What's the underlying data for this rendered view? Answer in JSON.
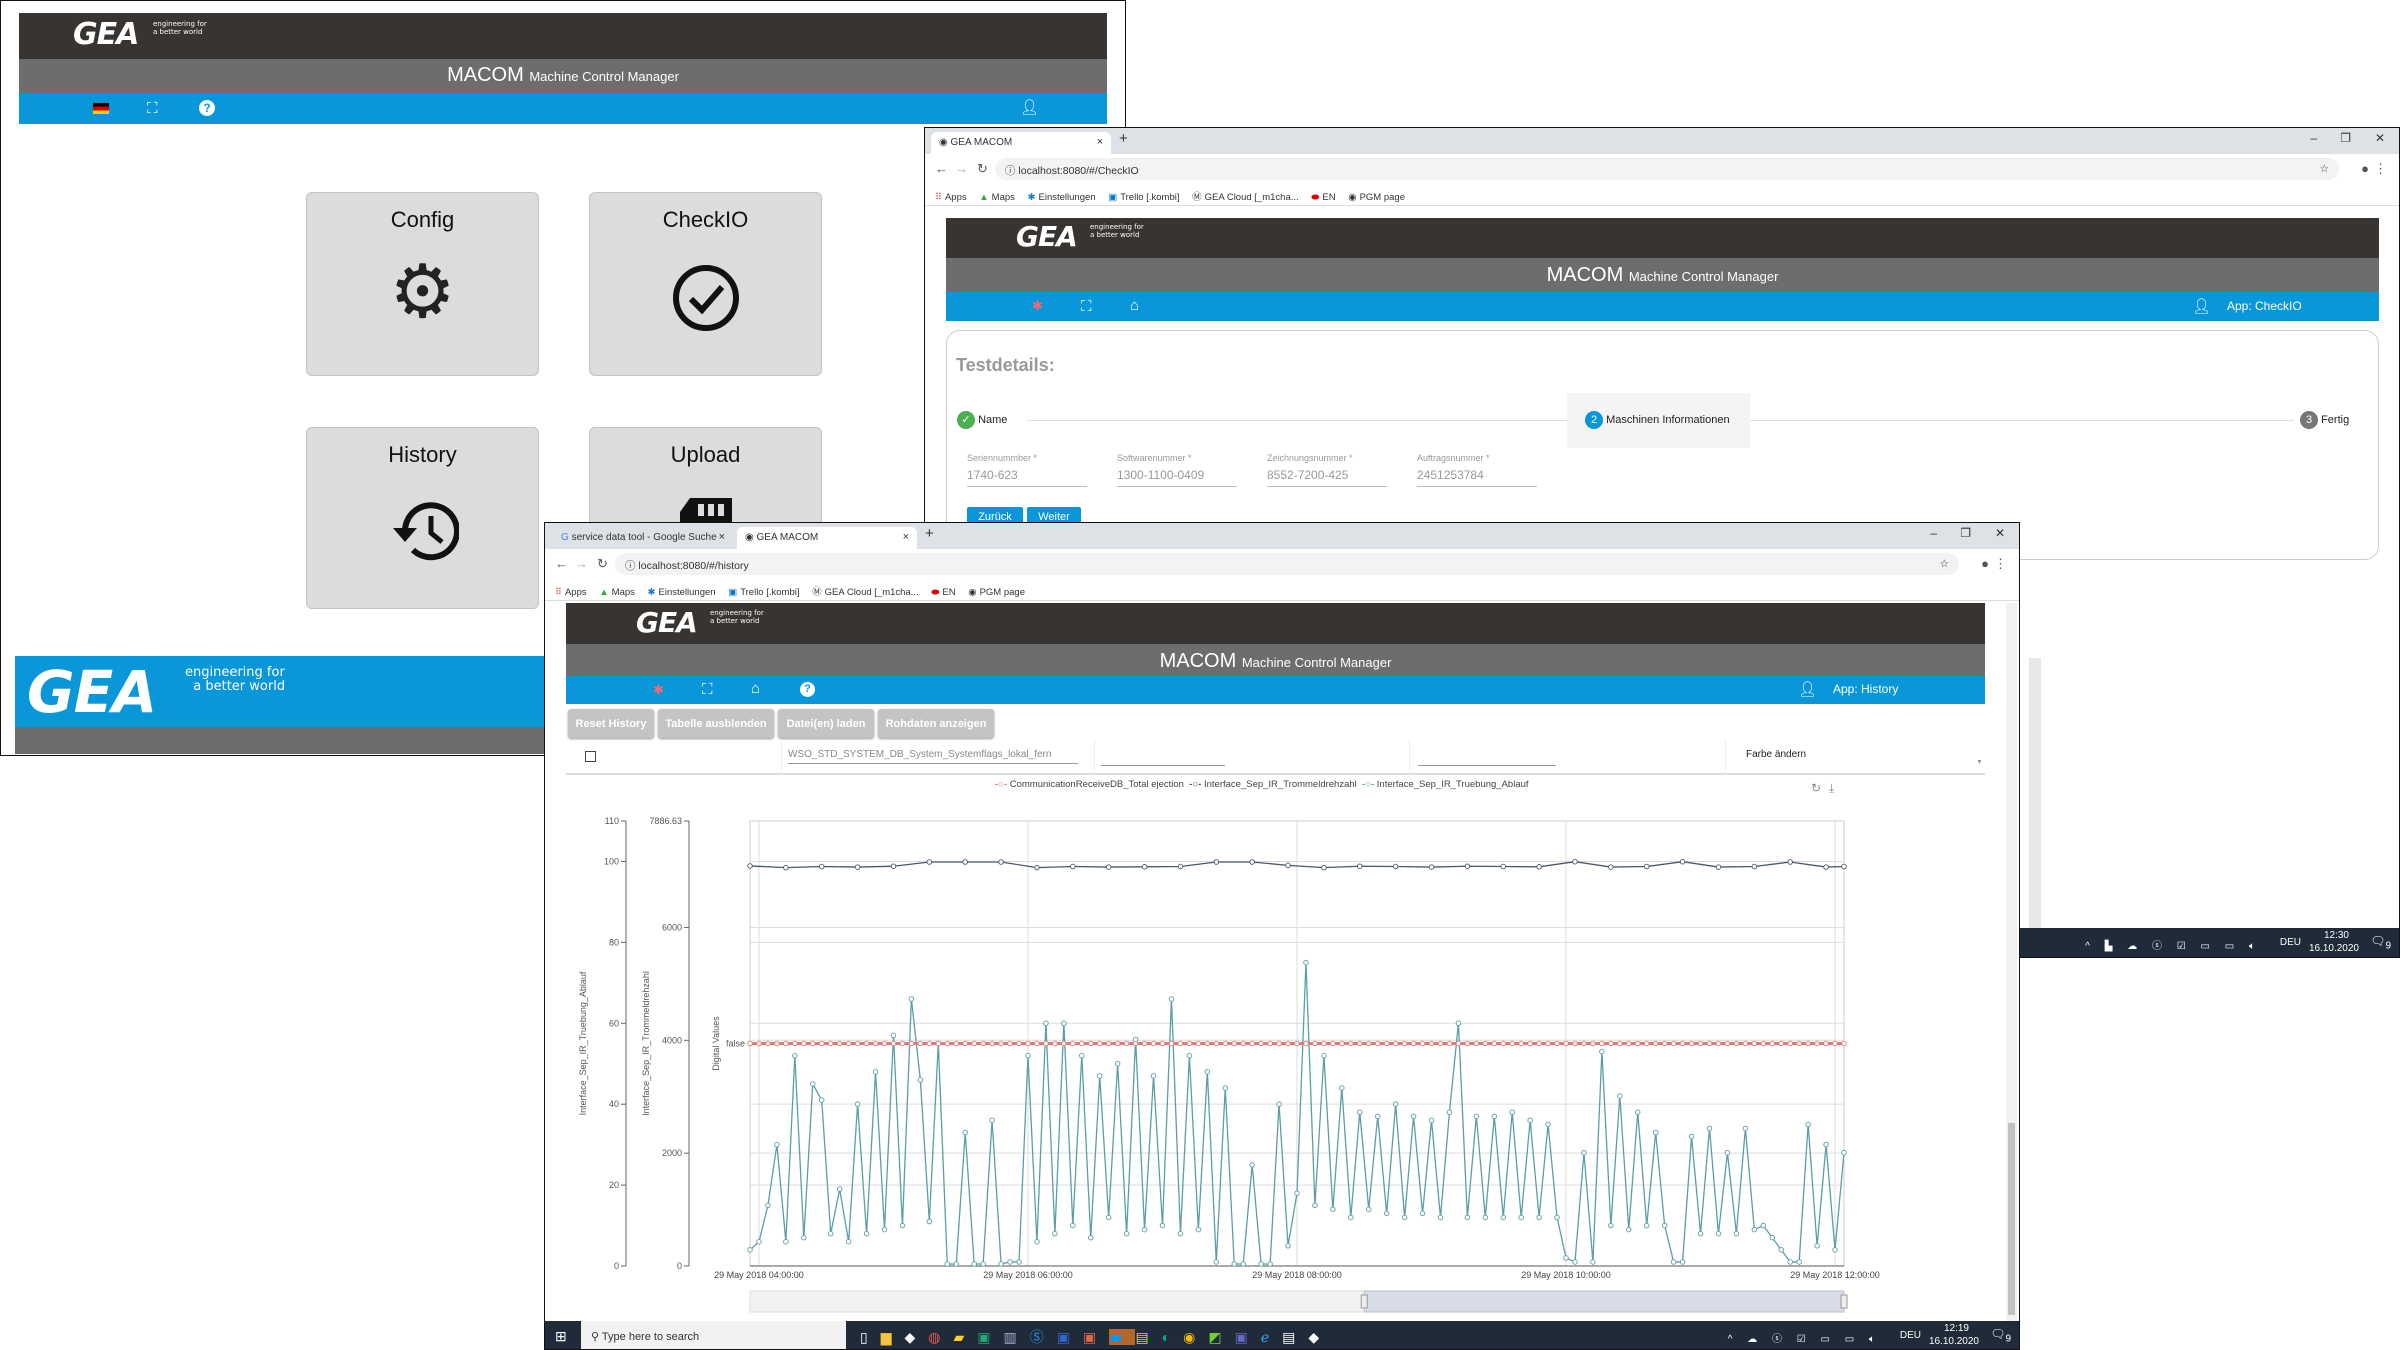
{
  "logo": {
    "text": "GEA",
    "tagline_1": "engineering for",
    "tagline_2": "a better world"
  },
  "app": {
    "title": "MACOM",
    "subtitle": "Machine Control Manager"
  },
  "home": {
    "nav_icons": [
      "german-flag-icon",
      "fullscreen-icon",
      "help-icon"
    ],
    "tiles": [
      {
        "label": "Config",
        "icon": "gear-icon"
      },
      {
        "label": "CheckIO",
        "icon": "check-circle-icon"
      },
      {
        "label": "History",
        "icon": "history-icon"
      },
      {
        "label": "Upload",
        "icon": "sd-card-icon"
      }
    ]
  },
  "checkio": {
    "browser": {
      "tab_title": "GEA MACOM",
      "url": "localhost:8080/#/CheckIO",
      "bookmarks": [
        "Apps",
        "Maps",
        "Einstellungen",
        "Trello [.kombi]",
        "GEA Cloud [_m1cha...",
        "EN",
        "PGM page"
      ]
    },
    "app_label": "App: CheckIO",
    "card": {
      "title": "Testdetails:",
      "steps": [
        {
          "num": "✓",
          "label": "Name",
          "state": "done"
        },
        {
          "num": "2",
          "label": "Maschinen Informationen",
          "state": "active"
        },
        {
          "num": "3",
          "label": "Fertig",
          "state": "pending"
        }
      ],
      "fields": [
        {
          "label": "Seriennummber *",
          "value": "1740-623"
        },
        {
          "label": "Softwarenummer *",
          "value": "1300-1100-0409"
        },
        {
          "label": "Zeichnungsnummer *",
          "value": "8552-7200-425"
        },
        {
          "label": "Auftragsnummer *",
          "value": "2451253784"
        }
      ],
      "buttons": {
        "back": "Zurück",
        "next": "Weiter"
      }
    },
    "tray": {
      "lang": "DEU",
      "time": "12:30",
      "date": "16.10.2020",
      "notifications": "9"
    }
  },
  "history": {
    "browser": {
      "tabs": [
        {
          "title": "service data tool - Google Suche",
          "active": false
        },
        {
          "title": "GEA MACOM",
          "active": true
        }
      ],
      "url": "localhost:8080/#/history",
      "bookmarks": [
        "Apps",
        "Maps",
        "Einstellungen",
        "Trello [.kombi]",
        "GEA Cloud [_m1cha...",
        "EN",
        "PGM page"
      ]
    },
    "app_label": "App: History",
    "toolbar": [
      "Reset History",
      "Tabelle ausblenden",
      "Datei(en) laden",
      "Rohdaten anzeigen"
    ],
    "filter": {
      "signal": "WSO_STD_SYSTEM_DB_System_Systemflags_lokal_fern",
      "color_label": "Farbe ändern"
    },
    "colors": {
      "digital": "#e07a7a",
      "drehzahl": "#4b5865",
      "truebung": "#5b9ea4"
    },
    "chart_data": {
      "type": "line",
      "date": "29 May 2018",
      "x_ticks": [
        "29 May 2018 04:00:00",
        "29 May 2018 06:00:00",
        "29 May 2018 08:00:00",
        "29 May 2018 10:00:00",
        "29 May 2018 12:00:00"
      ],
      "x_range": [
        "03:56",
        "12:04"
      ],
      "legend": [
        "CommunicationReceiveDB_Total ejection",
        "Interface_Sep_IR_Trommeldrehzahl",
        "Interface_Sep_IR_Truebung_Ablauf"
      ],
      "legend_placement": "top-center",
      "grid": true,
      "axes": [
        {
          "label": "Interface_Sep_IR_Truebung_Ablauf",
          "range": [
            0,
            110
          ],
          "ticks": [
            0,
            20,
            40,
            60,
            80,
            100,
            110
          ]
        },
        {
          "label": "Interface_Sep_IR_Trommeldrehzahl",
          "range": [
            0,
            7886.63
          ],
          "ticks": [
            0,
            2000,
            4000,
            6000,
            7886.63
          ]
        },
        {
          "label": "Digital Values",
          "ticks": [
            "false"
          ]
        }
      ],
      "series": [
        {
          "name": "CommunicationReceiveDB_Total ejection",
          "axis": 2,
          "value": "false",
          "x": [
            "03:56",
            "12:04"
          ]
        },
        {
          "name": "Interface_Sep_IR_Trommeldrehzahl",
          "axis": 1,
          "x": [
            "03:56",
            "04:12",
            "04:28",
            "04:44",
            "05:00",
            "05:16",
            "05:32",
            "05:48",
            "06:04",
            "06:20",
            "06:36",
            "06:52",
            "07:08",
            "07:24",
            "07:40",
            "07:56",
            "08:12",
            "08:28",
            "08:44",
            "09:00",
            "09:16",
            "09:32",
            "09:48",
            "10:04",
            "10:20",
            "10:36",
            "10:52",
            "11:08",
            "11:24",
            "11:40",
            "11:56",
            "12:04"
          ],
          "y": [
            7090,
            7060,
            7080,
            7070,
            7085,
            7160,
            7160,
            7160,
            7060,
            7080,
            7070,
            7075,
            7080,
            7160,
            7160,
            7100,
            7060,
            7085,
            7080,
            7070,
            7085,
            7080,
            7075,
            7165,
            7070,
            7080,
            7165,
            7070,
            7080,
            7160,
            7070,
            7080
          ]
        },
        {
          "name": "Interface_Sep_IR_Truebung_Ablauf",
          "axis": 0,
          "x": [
            "03:56",
            "04:00",
            "04:04",
            "04:08",
            "04:12",
            "04:16",
            "04:20",
            "04:24",
            "04:28",
            "04:32",
            "04:36",
            "04:40",
            "04:44",
            "04:48",
            "04:52",
            "04:56",
            "05:00",
            "05:04",
            "05:08",
            "05:12",
            "05:16",
            "05:20",
            "05:24",
            "05:28",
            "05:32",
            "05:36",
            "05:40",
            "05:44",
            "05:48",
            "05:52",
            "05:56",
            "06:00",
            "06:04",
            "06:08",
            "06:12",
            "06:16",
            "06:20",
            "06:24",
            "06:28",
            "06:32",
            "06:36",
            "06:40",
            "06:44",
            "06:48",
            "06:52",
            "06:56",
            "07:00",
            "07:04",
            "07:08",
            "07:12",
            "07:16",
            "07:20",
            "07:24",
            "07:28",
            "07:32",
            "07:36",
            "07:40",
            "07:44",
            "07:48",
            "07:52",
            "07:56",
            "08:00",
            "08:04",
            "08:08",
            "08:12",
            "08:16",
            "08:20",
            "08:24",
            "08:28",
            "08:32",
            "08:36",
            "08:40",
            "08:44",
            "08:48",
            "08:52",
            "08:56",
            "09:00",
            "09:04",
            "09:08",
            "09:12",
            "09:16",
            "09:20",
            "09:24",
            "09:28",
            "09:32",
            "09:36",
            "09:40",
            "09:44",
            "09:48",
            "09:52",
            "09:56",
            "10:00",
            "10:04",
            "10:08",
            "10:12",
            "10:16",
            "10:20",
            "10:24",
            "10:28",
            "10:32",
            "10:36",
            "10:40",
            "10:44",
            "10:48",
            "10:52",
            "10:56",
            "11:00",
            "11:04",
            "11:08",
            "11:12",
            "11:16",
            "11:20",
            "11:24",
            "11:28",
            "11:32",
            "11:36",
            "11:40",
            "11:44",
            "11:48",
            "11:52",
            "11:56",
            "12:00",
            "12:04"
          ],
          "y": [
            4,
            6,
            15,
            30,
            6,
            52,
            7,
            45,
            41,
            8,
            19,
            6,
            40,
            8,
            48,
            9,
            57,
            10,
            66,
            46,
            11,
            55,
            0.5,
            0.5,
            33,
            0.5,
            0.5,
            36,
            0.5,
            1,
            1,
            52,
            6,
            60,
            8,
            60,
            10,
            52,
            7,
            47,
            12,
            50,
            8,
            56,
            9,
            47,
            10,
            66,
            8,
            52,
            9,
            48,
            1,
            44,
            0.5,
            0.5,
            25,
            0.5,
            0.5,
            40,
            5,
            18,
            75,
            15,
            52,
            14,
            44,
            12,
            38,
            14,
            37,
            13,
            40,
            12,
            37,
            13,
            36,
            12,
            38,
            60,
            12,
            37,
            12,
            37,
            12,
            38,
            12,
            36,
            12,
            35,
            12,
            2,
            1,
            28,
            1,
            53,
            10,
            42,
            9,
            38,
            10,
            33,
            10,
            1,
            1,
            32,
            8,
            34,
            8,
            28,
            8,
            34,
            9,
            10,
            7,
            4,
            1,
            1,
            35,
            5,
            30,
            4,
            28
          ]
        }
      ]
    },
    "taskbar": {
      "search_placeholder": "Type here to search",
      "lang": "DEU",
      "time": "12:19",
      "date": "16.10.2020",
      "notifications": "9"
    }
  }
}
